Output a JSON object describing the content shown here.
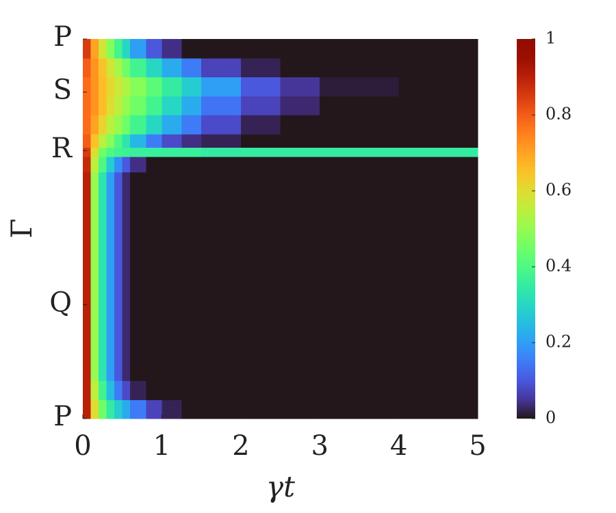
{
  "chart_data": {
    "type": "heatmap",
    "xlabel": "γt",
    "ylabel": "Γ",
    "xbins": [
      0,
      0.1,
      0.2,
      0.3,
      0.4,
      0.5,
      0.6,
      0.8,
      1,
      1.25,
      1.5,
      2,
      2.5,
      3,
      4,
      5
    ],
    "ybins": [
      0,
      0.05,
      0.1,
      0.15,
      0.2,
      0.25,
      0.3,
      0.35,
      0.4,
      0.45,
      0.5,
      0.55,
      0.6,
      0.65,
      0.69,
      0.715,
      0.75,
      0.8,
      0.85,
      0.9,
      0.95,
      1
    ],
    "z": [
      [
        0.9,
        0.6,
        0.45,
        0.35,
        0.28,
        0.22,
        0.15,
        0.07,
        0.02,
        0,
        0,
        0,
        0,
        0,
        0
      ],
      [
        0.9,
        0.55,
        0.38,
        0.25,
        0.15,
        0.08,
        0.02,
        0,
        0,
        0,
        0,
        0,
        0,
        0,
        0
      ],
      [
        0.9,
        0.5,
        0.33,
        0.2,
        0.1,
        0.03,
        0,
        0,
        0,
        0,
        0,
        0,
        0,
        0,
        0
      ],
      [
        0.9,
        0.5,
        0.33,
        0.2,
        0.1,
        0.03,
        0,
        0,
        0,
        0,
        0,
        0,
        0,
        0,
        0
      ],
      [
        0.9,
        0.5,
        0.33,
        0.2,
        0.1,
        0.03,
        0,
        0,
        0,
        0,
        0,
        0,
        0,
        0,
        0
      ],
      [
        0.9,
        0.5,
        0.33,
        0.2,
        0.1,
        0.03,
        0,
        0,
        0,
        0,
        0,
        0,
        0,
        0,
        0
      ],
      [
        0.9,
        0.5,
        0.33,
        0.2,
        0.1,
        0.03,
        0,
        0,
        0,
        0,
        0,
        0,
        0,
        0,
        0
      ],
      [
        0.9,
        0.5,
        0.33,
        0.2,
        0.1,
        0.03,
        0,
        0,
        0,
        0,
        0,
        0,
        0,
        0,
        0
      ],
      [
        0.9,
        0.5,
        0.33,
        0.2,
        0.1,
        0.03,
        0,
        0,
        0,
        0,
        0,
        0,
        0,
        0,
        0
      ],
      [
        0.9,
        0.5,
        0.33,
        0.2,
        0.1,
        0.03,
        0,
        0,
        0,
        0,
        0,
        0,
        0,
        0,
        0
      ],
      [
        0.9,
        0.5,
        0.33,
        0.2,
        0.1,
        0.03,
        0,
        0,
        0,
        0,
        0,
        0,
        0,
        0,
        0
      ],
      [
        0.9,
        0.5,
        0.33,
        0.2,
        0.1,
        0.03,
        0,
        0,
        0,
        0,
        0,
        0,
        0,
        0,
        0
      ],
      [
        0.9,
        0.5,
        0.33,
        0.2,
        0.1,
        0.03,
        0,
        0,
        0,
        0,
        0,
        0,
        0,
        0,
        0
      ],
      [
        0.88,
        0.55,
        0.4,
        0.28,
        0.18,
        0.1,
        0.04,
        0,
        0,
        0,
        0,
        0,
        0,
        0,
        0
      ],
      [
        0.85,
        0.6,
        0.45,
        0.4,
        0.38,
        0.37,
        0.36,
        0.36,
        0.36,
        0.36,
        0.35,
        0.35,
        0.35,
        0.35,
        0.35
      ],
      [
        0.8,
        0.65,
        0.55,
        0.48,
        0.4,
        0.33,
        0.24,
        0.15,
        0.08,
        0.04,
        0.02,
        0,
        0,
        0,
        0
      ],
      [
        0.78,
        0.7,
        0.62,
        0.55,
        0.5,
        0.45,
        0.38,
        0.3,
        0.22,
        0.15,
        0.08,
        0.02,
        0,
        0,
        0
      ],
      [
        0.78,
        0.72,
        0.66,
        0.6,
        0.55,
        0.5,
        0.45,
        0.38,
        0.3,
        0.22,
        0.14,
        0.07,
        0.03,
        0,
        0
      ],
      [
        0.78,
        0.72,
        0.66,
        0.61,
        0.57,
        0.53,
        0.48,
        0.42,
        0.35,
        0.28,
        0.2,
        0.1,
        0.05,
        0.01,
        0
      ],
      [
        0.8,
        0.72,
        0.65,
        0.58,
        0.52,
        0.45,
        0.38,
        0.3,
        0.22,
        0.15,
        0.07,
        0.02,
        0,
        0,
        0
      ],
      [
        0.85,
        0.7,
        0.58,
        0.48,
        0.38,
        0.3,
        0.2,
        0.1,
        0.04,
        0,
        0,
        0,
        0,
        0,
        0
      ]
    ],
    "xlim": [
      0,
      5
    ],
    "xticks": [
      0,
      1,
      2,
      3,
      4,
      5
    ],
    "ylim": [
      0,
      1
    ],
    "yticks": [
      {
        "value": 0,
        "label": "P"
      },
      {
        "value": 0.3,
        "label": "Q"
      },
      {
        "value": 0.706,
        "label": "R"
      },
      {
        "value": 0.86,
        "label": "S"
      },
      {
        "value": 1,
        "label": "P"
      }
    ],
    "clim": [
      0,
      1
    ],
    "cticks": [
      0,
      0.2,
      0.4,
      0.6,
      0.8,
      1
    ],
    "colormap": "turbo"
  }
}
